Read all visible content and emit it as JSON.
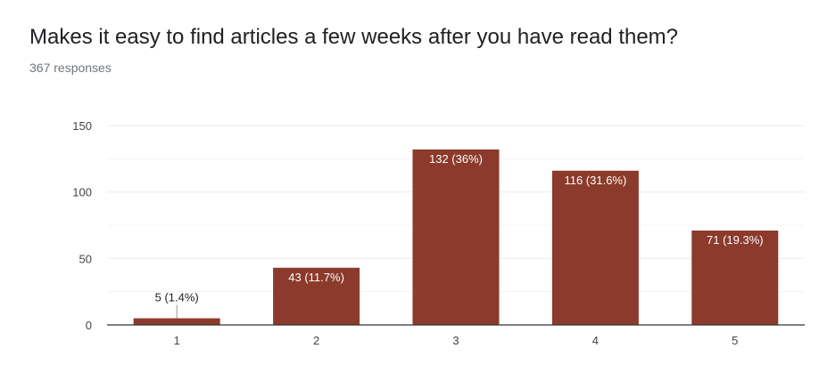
{
  "question": {
    "title": "Makes it easy to find articles a few weeks after you have read them?",
    "responses": "367 responses"
  },
  "colors": {
    "bar": "#8b3a2b",
    "gridline": "#ebebeb",
    "axis": "#333333",
    "tick_text": "#444444"
  },
  "chart_data": {
    "type": "bar",
    "categories": [
      "1",
      "2",
      "3",
      "4",
      "5"
    ],
    "values": [
      5,
      43,
      132,
      116,
      71
    ],
    "data_labels": [
      "5 (1.4%)",
      "43 (11.7%)",
      "132 (36%)",
      "116 (31.6%)",
      "71 (19.3%)"
    ],
    "y_ticks": [
      0,
      50,
      100,
      150
    ],
    "ylim": [
      0,
      150
    ],
    "xlabel": "",
    "ylabel": "",
    "grid": true,
    "legend": "none"
  }
}
